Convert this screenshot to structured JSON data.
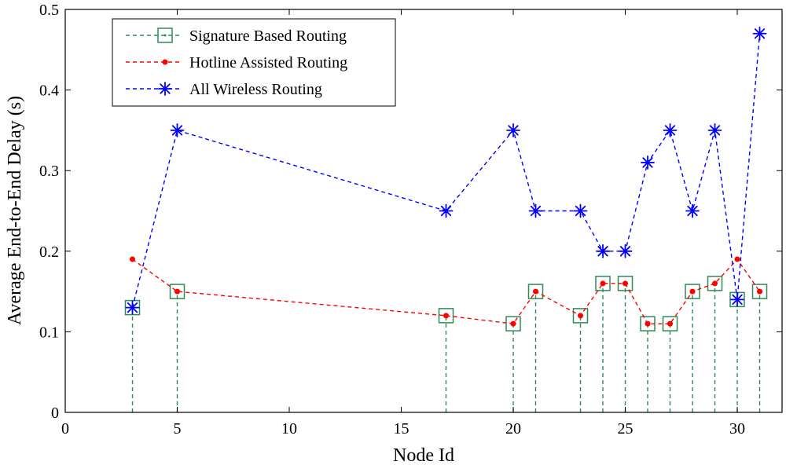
{
  "chart_data": {
    "type": "line",
    "title": "",
    "xlabel": "Node Id",
    "ylabel": "Average End-to-End Delay (s)",
    "xlim": [
      0,
      32
    ],
    "ylim": [
      0,
      0.5
    ],
    "xticks": [
      "0",
      "5",
      "10",
      "15",
      "20",
      "25",
      "30"
    ],
    "yticks": [
      "0",
      "0.1",
      "0.2",
      "0.3",
      "0.4",
      "0.5"
    ],
    "grid": false,
    "legend_position": "top-left",
    "series": [
      {
        "name": "Signature Based Routing",
        "style": "stem",
        "marker": "square-dot",
        "color": "#2e8b57",
        "x": [
          3,
          5,
          17,
          20,
          21,
          23,
          24,
          25,
          26,
          27,
          28,
          29,
          30,
          31
        ],
        "y": [
          0.13,
          0.15,
          0.12,
          0.11,
          0.15,
          0.12,
          0.16,
          0.16,
          0.11,
          0.11,
          0.15,
          0.16,
          0.14,
          0.15
        ]
      },
      {
        "name": "Hotline Assisted Routing",
        "style": "dashed-line",
        "marker": "dot",
        "color": "#ff0000",
        "x": [
          3,
          5,
          17,
          20,
          21,
          23,
          24,
          25,
          26,
          27,
          28,
          29,
          30,
          31
        ],
        "y": [
          0.19,
          0.15,
          0.12,
          0.11,
          0.15,
          0.12,
          0.16,
          0.16,
          0.11,
          0.11,
          0.15,
          0.16,
          0.19,
          0.15
        ]
      },
      {
        "name": "All Wireless Routing",
        "style": "dashed-line",
        "marker": "star",
        "color": "#0000ff",
        "x": [
          3,
          5,
          17,
          20,
          21,
          23,
          24,
          25,
          26,
          27,
          28,
          29,
          30,
          31
        ],
        "y": [
          0.13,
          0.35,
          0.25,
          0.35,
          0.25,
          0.25,
          0.2,
          0.2,
          0.31,
          0.35,
          0.25,
          0.35,
          0.14,
          0.47
        ]
      }
    ]
  }
}
